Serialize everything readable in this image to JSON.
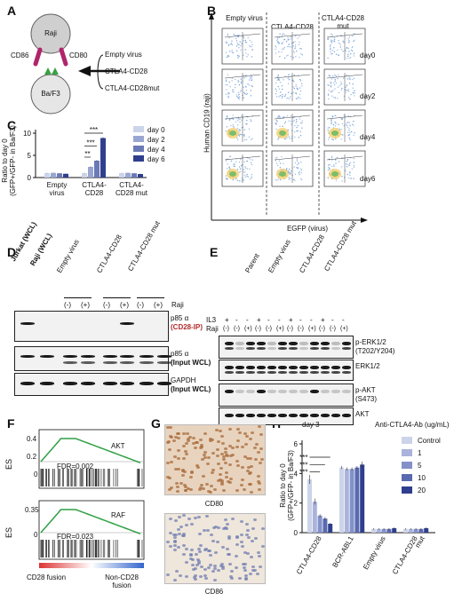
{
  "panels": {
    "A": "A",
    "B": "B",
    "C": "C",
    "D": "D",
    "E": "E",
    "F": "F",
    "G": "G",
    "H": "H"
  },
  "panelA": {
    "raji": "Raji",
    "cd86": "CD86",
    "cd80": "CD80",
    "baf3": "Ba/F3",
    "constructs": [
      "Empty virus",
      "CTLA4-CD28",
      "CTLA4-CD28mut"
    ],
    "colors": {
      "raji": "#cfcfcf",
      "baf3": "#e6e6e6",
      "ligand": "#b0246a",
      "receptor": "#3aa146"
    }
  },
  "panelB": {
    "columns": [
      "Empty virus",
      "CTLA4-CD28",
      "CTLA4-CD28 mut"
    ],
    "rows": [
      "day0",
      "day2",
      "day4",
      "day6"
    ],
    "ylabel": "Human CD19 (raji)",
    "xlabel": "EGFP (virus)"
  },
  "panelC": {
    "chart_data": {
      "type": "bar",
      "categories": [
        "Empty virus",
        "CTLA4-CD28",
        "CTLA4-CD28 mut"
      ],
      "category_labels": [
        [
          "Empty",
          "virus"
        ],
        [
          "CTLA4-",
          "CD28"
        ],
        [
          "CTLA4-",
          "CD28 mut"
        ]
      ],
      "series": [
        {
          "name": "day 0",
          "values": [
            1.0,
            1.0,
            1.0
          ],
          "errors": [
            0.05,
            0.05,
            0.05
          ],
          "color": "#ccd4ea"
        },
        {
          "name": "day 2",
          "values": [
            1.05,
            2.4,
            1.05
          ],
          "errors": [
            0.05,
            0.1,
            0.05
          ],
          "color": "#9aa6d2"
        },
        {
          "name": "day 4",
          "values": [
            0.95,
            3.8,
            0.95
          ],
          "errors": [
            0.05,
            0.15,
            0.05
          ],
          "color": "#6b79b6"
        },
        {
          "name": "day 6",
          "values": [
            0.85,
            8.9,
            0.8
          ],
          "errors": [
            0.05,
            0.2,
            0.05
          ],
          "color": "#2f3f8e"
        }
      ],
      "ylabel": "Ratio to day 0",
      "ylabel2": "(GFP+/GFP- in Ba/F3)",
      "yticks": [
        0,
        5,
        10
      ],
      "ylim": [
        0,
        10
      ],
      "significance": [
        "**",
        "***",
        "***"
      ],
      "legend": "top-right"
    }
  },
  "panelD": {
    "lanes": [
      "Jurkat (WCL)",
      "Raji (WCL)",
      "Empty virus",
      "CTLA4-CD28",
      "CTLA4-CD28 mut"
    ],
    "raji_label": "Raji",
    "signs": [
      "(-)",
      "(+)",
      "(-)",
      "(+)",
      "(-)",
      "(+)"
    ],
    "blots": [
      {
        "l1": "p85 α",
        "l2": "(CD28-IP)"
      },
      {
        "l1": "p85 α",
        "l2": "(Input WCL)"
      },
      {
        "l1": "GAPDH",
        "l2": "(Input WCL)"
      }
    ],
    "ip_color": "#b22a2a"
  },
  "panelE": {
    "lanes": [
      "Parent",
      "Empty virus",
      "CTLA4-CD28",
      "CTLA4-CD28 mut"
    ],
    "il3_label": "IL3",
    "raji_label": "Raji",
    "il3": [
      "+",
      "-",
      "-",
      "+",
      "-",
      "-",
      "+",
      "-",
      "-",
      "+",
      "-",
      "-"
    ],
    "raji": [
      "(-)",
      "(-)",
      "(+)",
      "(-)",
      "(-)",
      "(+)",
      "(-)",
      "(-)",
      "(+)",
      "(-)",
      "(-)",
      "(+)"
    ],
    "blots": [
      {
        "l1": "p-ERK1/2",
        "l2": "(T202/Y204)"
      },
      {
        "l1": "ERK1/2",
        "l2": ""
      },
      {
        "l1": "p-AKT",
        "l2": "(S473)"
      },
      {
        "l1": "AKT",
        "l2": ""
      }
    ]
  },
  "panelF": {
    "ylabel": "ES",
    "plots": [
      {
        "name": "AKT",
        "fdr": "FDR=0.002",
        "yticks": [
          "0.4",
          "0.2",
          "0"
        ]
      },
      {
        "name": "RAF",
        "fdr": "FDR=0.023",
        "yticks": [
          "0.35",
          "0"
        ]
      }
    ],
    "xleft": "CD28 fusion",
    "xright": [
      "Non-CD28",
      "fusion"
    ],
    "curve_color": "#2ea043"
  },
  "panelG": {
    "images": [
      "CD80",
      "CD86"
    ]
  },
  "panelH": {
    "chart_data": {
      "type": "bar",
      "title": "day 3",
      "legend_title": "Anti-CTLA4-Ab (ug/mL)",
      "categories": [
        "CTLA4-CD28",
        "BCR-ABL1",
        "Empty virus",
        "CTLA4-CD28 mut"
      ],
      "category_labels": [
        [
          "CTLA4-CD28"
        ],
        [
          "BCR-ABL1"
        ],
        [
          "Empty virus"
        ],
        [
          "CTLA4-CD28",
          "mut"
        ]
      ],
      "series": [
        {
          "name": "Control",
          "values": [
            3.6,
            4.4,
            0.25,
            0.25
          ],
          "errors": [
            0.3,
            0.1,
            0.05,
            0.05
          ],
          "color": "#ccd4ea"
        },
        {
          "name": "1",
          "values": [
            2.1,
            4.3,
            0.25,
            0.25
          ],
          "errors": [
            0.2,
            0.1,
            0.05,
            0.05
          ],
          "color": "#a9b3db"
        },
        {
          "name": "5",
          "values": [
            1.15,
            4.3,
            0.25,
            0.25
          ],
          "errors": [
            0.1,
            0.1,
            0.05,
            0.05
          ],
          "color": "#8391c8"
        },
        {
          "name": "10",
          "values": [
            0.95,
            4.4,
            0.25,
            0.25
          ],
          "errors": [
            0.1,
            0.1,
            0.05,
            0.05
          ],
          "color": "#5a6ab0"
        },
        {
          "name": "20",
          "values": [
            0.6,
            4.6,
            0.3,
            0.3
          ],
          "errors": [
            0.05,
            0.2,
            0.05,
            0.05
          ],
          "color": "#2f3f8e"
        }
      ],
      "ylabel": "Ratio to day 0",
      "ylabel2": "(GFP+/GFP- in Ba/F3)",
      "yticks": [
        0,
        2,
        4,
        6
      ],
      "ylim": [
        0,
        6
      ],
      "significance": [
        "***",
        "***",
        "***"
      ]
    }
  }
}
